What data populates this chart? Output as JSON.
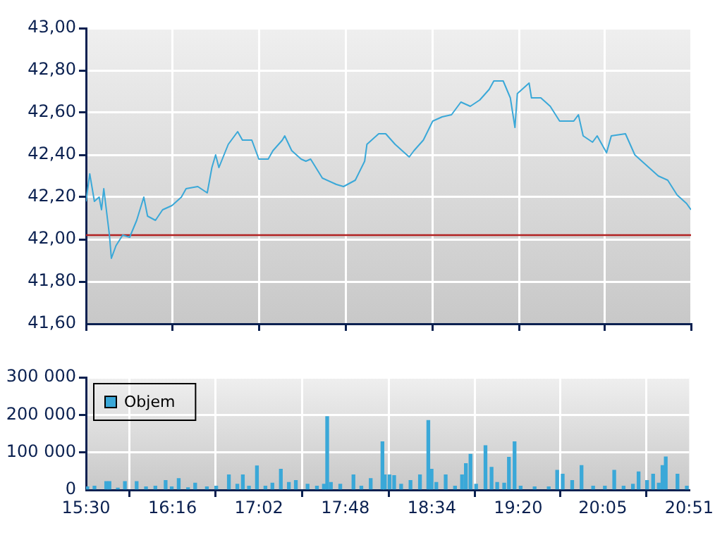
{
  "chart_data": [
    {
      "type": "line",
      "color": "#3aa8d8",
      "marker": "none",
      "grid": true,
      "tick_labels": "y",
      "x": [
        15.5,
        15.533,
        15.574,
        15.616,
        15.637,
        15.657,
        15.691,
        15.707,
        15.724,
        15.765,
        15.824,
        15.886,
        15.948,
        16.011,
        16.044,
        16.114,
        16.177,
        16.26,
        16.343,
        16.385,
        16.488,
        16.572,
        16.613,
        16.646,
        16.675,
        16.758,
        16.841,
        16.883,
        16.966,
        17.028,
        17.111,
        17.153,
        17.236,
        17.257,
        17.319,
        17.402,
        17.444,
        17.486,
        17.59,
        17.714,
        17.777,
        17.881,
        17.964,
        17.984,
        18.088,
        18.15,
        18.233,
        18.316,
        18.358,
        18.4,
        18.483,
        18.566,
        18.649,
        18.732,
        18.815,
        18.898,
        18.982,
        19.065,
        19.106,
        19.189,
        19.252,
        19.293,
        19.314,
        19.418,
        19.439,
        19.522,
        19.605,
        19.688,
        19.813,
        19.854,
        19.896,
        19.979,
        20.02,
        20.103,
        20.145,
        20.27,
        20.353,
        20.436,
        20.561,
        20.644,
        20.727,
        20.81,
        20.85
      ],
      "values": [
        42.18,
        42.31,
        42.18,
        42.2,
        42.14,
        42.24,
        42.09,
        42.02,
        41.91,
        41.97,
        42.02,
        42.01,
        42.09,
        42.2,
        42.11,
        42.09,
        42.14,
        42.16,
        42.2,
        42.24,
        42.25,
        42.22,
        42.34,
        42.4,
        42.34,
        42.45,
        42.51,
        42.47,
        42.47,
        42.38,
        42.38,
        42.42,
        42.47,
        42.49,
        42.42,
        42.38,
        42.37,
        42.38,
        42.29,
        42.26,
        42.25,
        42.28,
        42.37,
        42.45,
        42.5,
        42.5,
        42.45,
        42.41,
        42.39,
        42.42,
        42.47,
        42.56,
        42.58,
        42.59,
        42.65,
        42.63,
        42.66,
        42.71,
        42.75,
        42.75,
        42.67,
        42.53,
        42.69,
        42.74,
        42.67,
        42.67,
        42.63,
        42.56,
        42.56,
        42.59,
        42.49,
        42.46,
        42.49,
        42.41,
        42.49,
        42.5,
        42.4,
        42.36,
        42.3,
        42.28,
        42.21,
        42.17,
        42.14
      ],
      "xlim": [
        15.5,
        20.85
      ],
      "xticks": [
        {
          "value": 15.5,
          "label": null
        },
        {
          "value": 16.2667,
          "label": null
        },
        {
          "value": 17.0333,
          "label": null
        },
        {
          "value": 17.8,
          "label": null
        },
        {
          "value": 18.5667,
          "label": null
        },
        {
          "value": 19.3333,
          "label": null
        },
        {
          "value": 20.0833,
          "label": null
        },
        {
          "value": 20.85,
          "label": null
        }
      ],
      "ylim": [
        41.6,
        43
      ],
      "yticks": [
        {
          "value": 41.6,
          "label": "41,60"
        },
        {
          "value": 41.8,
          "label": "41,80"
        },
        {
          "value": 42,
          "label": "42,00"
        },
        {
          "value": 42.2,
          "label": "42,20"
        },
        {
          "value": 42.4,
          "label": "42,40"
        },
        {
          "value": 42.6,
          "label": "42,60"
        },
        {
          "value": 42.8,
          "label": "42,80"
        },
        {
          "value": 43,
          "label": "43,00"
        }
      ],
      "ref_lines": [
        {
          "axis": "y",
          "value": 42.02,
          "color": "#b22222"
        }
      ]
    },
    {
      "type": "bar",
      "grid": true,
      "legend": "top left",
      "x": [
        15.512,
        15.575,
        15.679,
        15.708,
        15.782,
        15.845,
        15.949,
        16.032,
        16.115,
        16.206,
        16.26,
        16.322,
        16.405,
        16.468,
        16.572,
        16.655,
        16.767,
        16.842,
        16.891,
        16.945,
        17.016,
        17.091,
        17.153,
        17.228,
        17.299,
        17.361,
        17.465,
        17.548,
        17.61,
        17.639,
        17.672,
        17.755,
        17.872,
        17.942,
        18.025,
        18.129,
        18.15,
        18.192,
        18.233,
        18.295,
        18.378,
        18.462,
        18.536,
        18.565,
        18.607,
        18.69,
        18.773,
        18.835,
        18.869,
        18.91,
        18.96,
        19.043,
        19.097,
        19.147,
        19.209,
        19.251,
        19.301,
        19.355,
        19.479,
        19.604,
        19.679,
        19.728,
        19.812,
        19.895,
        19.998,
        20.102,
        20.185,
        20.268,
        20.351,
        20.401,
        20.476,
        20.53,
        20.58,
        20.613,
        20.642,
        20.746,
        20.829
      ],
      "series": [
        {
          "name": "Objem",
          "color": "#3aa8d8",
          "values": [
            8000,
            10000,
            22000,
            22000,
            5000,
            22000,
            22000,
            8000,
            10000,
            25000,
            8000,
            30000,
            6000,
            18000,
            8000,
            10000,
            40000,
            15000,
            40000,
            10000,
            64000,
            10000,
            18000,
            55000,
            20000,
            25000,
            15000,
            10000,
            15000,
            195000,
            20000,
            15000,
            40000,
            10000,
            30000,
            128000,
            40000,
            40000,
            38000,
            15000,
            25000,
            40000,
            185000,
            55000,
            20000,
            40000,
            10000,
            40000,
            70000,
            95000,
            15000,
            118000,
            60000,
            20000,
            18000,
            87000,
            128000,
            10000,
            8000,
            8000,
            52000,
            42000,
            25000,
            65000,
            10000,
            10000,
            52000,
            10000,
            15000,
            48000,
            25000,
            42000,
            18000,
            65000,
            88000,
            42000,
            10000
          ]
        }
      ],
      "xlim": [
        15.5,
        20.85
      ],
      "xticks": [
        {
          "value": 15.5,
          "label": "15:30"
        },
        {
          "value": 16.2667,
          "label": "16:16"
        },
        {
          "value": 17.0333,
          "label": "17:02"
        },
        {
          "value": 17.8,
          "label": "17:48"
        },
        {
          "value": 18.5667,
          "label": "18:34"
        },
        {
          "value": 19.3333,
          "label": "19:20"
        },
        {
          "value": 20.0833,
          "label": "20:05"
        },
        {
          "value": 20.85,
          "label": "20:51"
        }
      ],
      "ylim": [
        0,
        300000
      ],
      "yticks": [
        {
          "value": 0,
          "label": "0"
        },
        {
          "value": 100000,
          "label": "100 000"
        },
        {
          "value": 200000,
          "label": "200 000"
        },
        {
          "value": 300000,
          "label": "300 000"
        }
      ]
    }
  ]
}
